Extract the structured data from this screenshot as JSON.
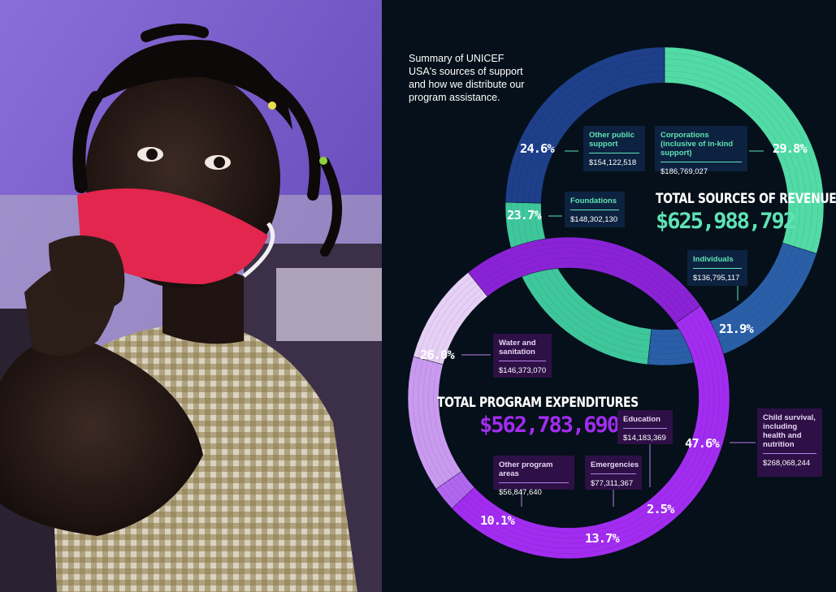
{
  "colors": {
    "background": "#05101a",
    "revenue_green": "#52dba6",
    "revenue_blue": "#2a5fa8",
    "revenue_navy": "#1e3f8a",
    "expenditure_purple": "#a22cf0",
    "expenditure_light": "#c99af0",
    "expenditure_pale": "#e6d0f5",
    "mask_red": "#e2264d",
    "wall_purple": "#7a5cc9"
  },
  "summary": "Summary of UNICEF USA's sources of support and how we distribute our program assistance.",
  "chart_data": [
    {
      "type": "pie",
      "style": "donut",
      "title": "TOTAL SOURCES OF REVENUE",
      "total": "$625,988,792",
      "slices": [
        {
          "name": "Corporations (inclusive of in-kind support)",
          "amount": "$186,769,027",
          "percent": "29.8%",
          "value": 29.8,
          "color": "#52dba6"
        },
        {
          "name": "Individuals",
          "amount": "$136,795,117",
          "percent": "21.9%",
          "value": 21.9,
          "color": "#2a5fa8"
        },
        {
          "name": "Foundations",
          "amount": "$148,302,130",
          "percent": "23.7%",
          "value": 23.7,
          "color": "#3fc79c"
        },
        {
          "name": "Other public support",
          "amount": "$154,122,518",
          "percent": "24.6%",
          "value": 24.6,
          "color": "#1e3f8a"
        }
      ]
    },
    {
      "type": "pie",
      "style": "donut",
      "title": "TOTAL PROGRAM EXPENDITURES",
      "total": "$562,783,690",
      "slices": [
        {
          "name": "Child survival, including health and nutrition",
          "amount": "$268,068,244",
          "percent": "47.6%",
          "value": 47.6,
          "color": "#a22cf0"
        },
        {
          "name": "Education",
          "amount": "$14,183,369",
          "percent": "2.5%",
          "value": 2.5,
          "color": "#b166f0"
        },
        {
          "name": "Emergencies",
          "amount": "$77,311,367",
          "percent": "13.7%",
          "value": 13.7,
          "color": "#c99af0"
        },
        {
          "name": "Other program areas",
          "amount": "$56,847,640",
          "percent": "10.1%",
          "value": 10.1,
          "color": "#e6d0f5"
        },
        {
          "name": "Water and sanitation",
          "amount": "$146,373,070",
          "percent": "26.0%",
          "value": 26.0,
          "color": "#8a23d6"
        }
      ]
    }
  ]
}
